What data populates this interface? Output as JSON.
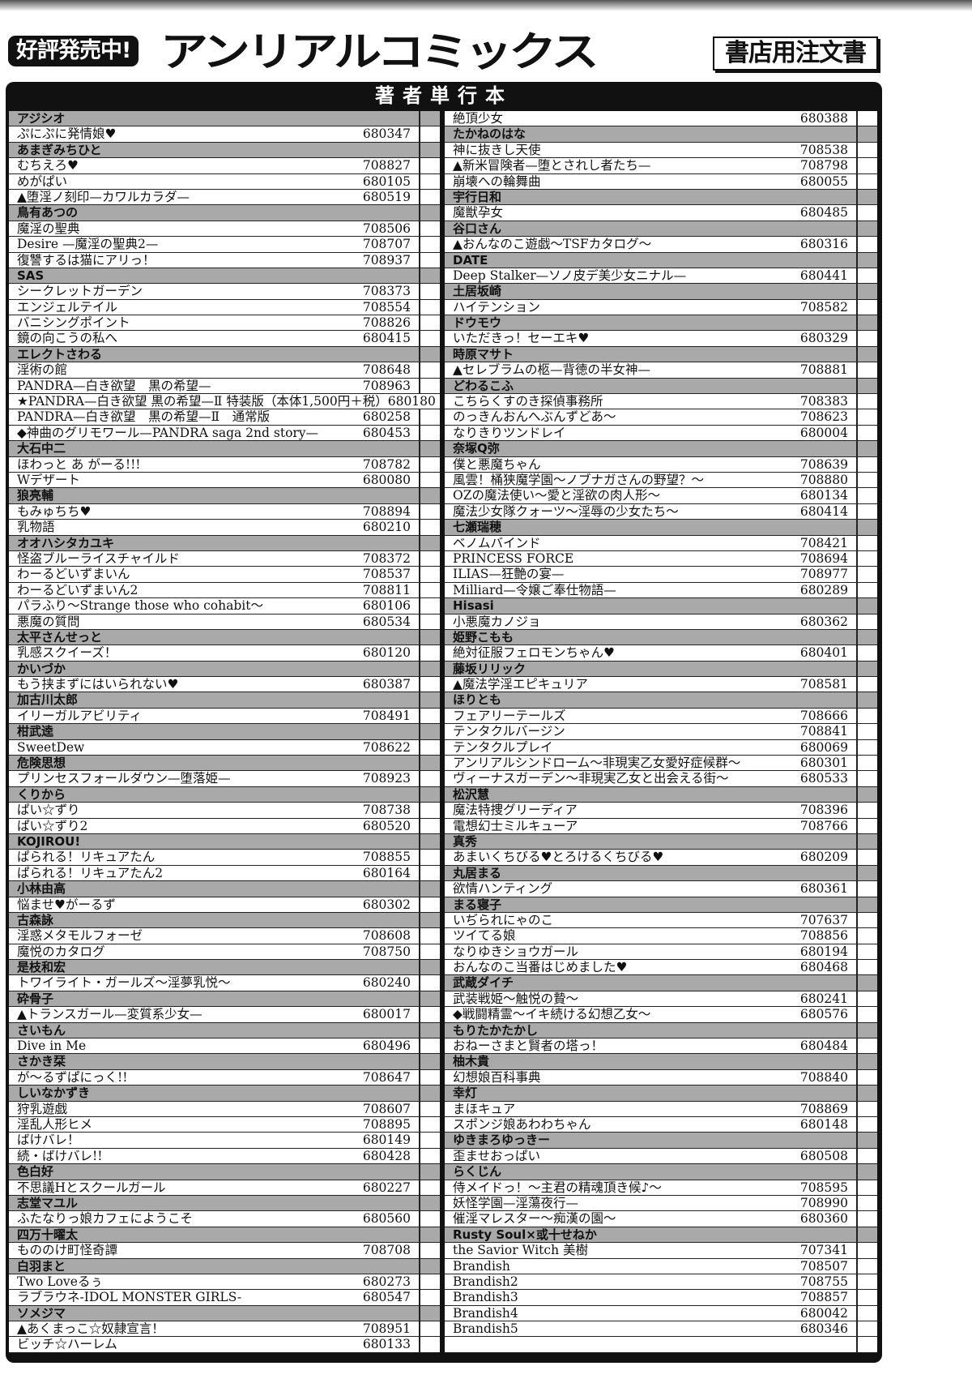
{
  "header": {
    "badge": "好評発売中!",
    "brand": "アンリアルコミックス",
    "order_form": "書店用注文書"
  },
  "panel_title": "著者単行本",
  "left_rows": [
    {
      "author": "アジシオ"
    },
    {
      "title": "ぷにぷに発情娘♥",
      "code": "680347"
    },
    {
      "author": "あまぎみちひと"
    },
    {
      "title": "むちえろ♥",
      "code": "708827"
    },
    {
      "title": "めがぱい",
      "code": "680105"
    },
    {
      "title": "▲堕淫ノ刻印—カワルカラダ—",
      "code": "680519"
    },
    {
      "author": "鳥有あつの"
    },
    {
      "title": "魔淫の聖典",
      "code": "708506"
    },
    {
      "title": "Desire —魔淫の聖典2—",
      "code": "708707"
    },
    {
      "title": "復讐するは猫にアリっ！",
      "code": "708937"
    },
    {
      "author": "SAS"
    },
    {
      "title": "シークレットガーデン",
      "code": "708373"
    },
    {
      "title": "エンジェルテイル",
      "code": "708554"
    },
    {
      "title": "バニシングポイント",
      "code": "708826"
    },
    {
      "title": "鏡の向こうの私へ",
      "code": "680415"
    },
    {
      "author": "エレクトさわる"
    },
    {
      "title": "淫術の館",
      "code": "708648"
    },
    {
      "title": "PANDRA—白き欲望　黒の希望—",
      "code": "708963"
    },
    {
      "title": "★PANDRA—白き欲望 黒の希望—Ⅱ 特装版（本体1,500円＋税）",
      "code": "680180"
    },
    {
      "title": "PANDRA—白き欲望　黒の希望—Ⅱ　通常版",
      "code": "680258"
    },
    {
      "title": "◆神曲のグリモワール—PANDRA saga 2nd story—",
      "code": "680453"
    },
    {
      "author": "大石中二"
    },
    {
      "title": "ほわっと あ がーる!!!",
      "code": "708782"
    },
    {
      "title": "Wデザート",
      "code": "680080"
    },
    {
      "author": "狼亮輔"
    },
    {
      "title": "もみゅちち♥",
      "code": "708894"
    },
    {
      "title": "乳物語",
      "code": "680210"
    },
    {
      "author": "オオハシタカユキ"
    },
    {
      "title": "怪盗ブルーライスチャイルド",
      "code": "708372"
    },
    {
      "title": "わーるどいずまいん",
      "code": "708537"
    },
    {
      "title": "わーるどいずまいん2",
      "code": "708811"
    },
    {
      "title": "パラふり〜Strange those who cohabit〜",
      "code": "680106"
    },
    {
      "title": "悪魔の質問",
      "code": "680534"
    },
    {
      "author": "太平さんせっと"
    },
    {
      "title": "乳感スクイーズ！",
      "code": "680120"
    },
    {
      "author": "かいづか"
    },
    {
      "title": "もう挟まずにはいられない♥",
      "code": "680387"
    },
    {
      "author": "加古川太郎"
    },
    {
      "title": "イリーガルアビリティ",
      "code": "708491"
    },
    {
      "author": "柑武逵"
    },
    {
      "title": "SweetDew",
      "code": "708622"
    },
    {
      "author": "危険思想"
    },
    {
      "title": "プリンセスフォールダウン—堕落姫—",
      "code": "708923"
    },
    {
      "author": "くりから"
    },
    {
      "title": "ぱい☆ずり",
      "code": "708738"
    },
    {
      "title": "ぱい☆ずり2",
      "code": "680520"
    },
    {
      "author": "KOJIROU!"
    },
    {
      "title": "ぱられる！リキュアたん",
      "code": "708855"
    },
    {
      "title": "ぱられる！リキュアたん2",
      "code": "680164"
    },
    {
      "author": "小林由高"
    },
    {
      "title": "悩ませ♥がーるず",
      "code": "680302"
    },
    {
      "author": "古森詠"
    },
    {
      "title": "淫惑メタモルフォーゼ",
      "code": "708608"
    },
    {
      "title": "魔悦のカタログ",
      "code": "708750"
    },
    {
      "author": "是枝和宏"
    },
    {
      "title": "トワイライト・ガールズ〜淫夢乳悦〜",
      "code": "680240"
    },
    {
      "author": "砕骨子"
    },
    {
      "title": "▲トランスガール—変質系少女—",
      "code": "680017"
    },
    {
      "author": "さいもん"
    },
    {
      "title": "Dive in Me",
      "code": "680496"
    },
    {
      "author": "さかき栞"
    },
    {
      "title": "が〜るずぱにっく!!",
      "code": "708647"
    },
    {
      "author": "しいなかずき"
    },
    {
      "title": "狩乳遊戯",
      "code": "708607"
    },
    {
      "title": "淫乱人形ヒメ",
      "code": "708895"
    },
    {
      "title": "ばけバレ！",
      "code": "680149"
    },
    {
      "title": "続・ばけバレ!!",
      "code": "680428"
    },
    {
      "author": "色白好"
    },
    {
      "title": "不思議Hとスクールガール",
      "code": "680227"
    },
    {
      "author": "志堂マユル"
    },
    {
      "title": "ふたなりっ娘カフェにようこそ",
      "code": "680560"
    },
    {
      "author": "四万十曜太"
    },
    {
      "title": "もののけ町怪奇譚",
      "code": "708708"
    },
    {
      "author": "白羽まと"
    },
    {
      "title": "Two Loveるぅ",
      "code": "680273"
    },
    {
      "title": "ラブラウネ-IDOL MONSTER GIRLS-",
      "code": "680547"
    },
    {
      "author": "ソメジマ"
    },
    {
      "title": "▲あくまっこ☆奴隷宣言！",
      "code": "708951"
    },
    {
      "title": "ビッチ☆ハーレム",
      "code": "680133"
    }
  ],
  "right_rows": [
    {
      "title": "絶頂少女",
      "code": "680388"
    },
    {
      "author": "たかねのはな"
    },
    {
      "title": "神に抜きし天使",
      "code": "708538"
    },
    {
      "title": "▲新米冒険者—堕とされし者たち—",
      "code": "708798"
    },
    {
      "title": "崩壊への輪舞曲",
      "code": "680055"
    },
    {
      "author": "宇行日和"
    },
    {
      "title": "魔獣孕女",
      "code": "680485"
    },
    {
      "author": "谷口さん"
    },
    {
      "title": "▲おんなのこ遊戯〜TSFカタログ〜",
      "code": "680316"
    },
    {
      "author": "DATE"
    },
    {
      "title": "Deep Stalker—ソノ皮デ美少女ニナル—",
      "code": "680441"
    },
    {
      "author": "土居坂崎"
    },
    {
      "title": "ハイテンション",
      "code": "708582"
    },
    {
      "author": "ドウモウ"
    },
    {
      "title": "いただきっ！セーエキ♥",
      "code": "680329"
    },
    {
      "author": "時原マサト"
    },
    {
      "title": "▲セレブラムの柩—背徳の半女神—",
      "code": "708881"
    },
    {
      "author": "どわるこふ"
    },
    {
      "title": "こちらくすのき探偵事務所",
      "code": "708383"
    },
    {
      "title": "のっきんおんへぶんずどあ〜",
      "code": "708623"
    },
    {
      "title": "なりきりツンドレイ",
      "code": "680004"
    },
    {
      "author": "奈塚Q弥"
    },
    {
      "title": "僕と悪魔ちゃん",
      "code": "708639"
    },
    {
      "title": "風雲！桶狭魔学園〜ノブナガさんの野望？〜",
      "code": "708880"
    },
    {
      "title": "OZの魔法使い〜愛と淫欲の肉人形〜",
      "code": "680134"
    },
    {
      "title": "魔法少女隊クォーツ〜淫辱の少女たち〜",
      "code": "680414"
    },
    {
      "author": "七瀬瑞穂"
    },
    {
      "title": "ベノムバインド",
      "code": "708421"
    },
    {
      "title": "PRINCESS FORCE",
      "code": "708694"
    },
    {
      "title": "ILIAS—狂艶の宴—",
      "code": "708977"
    },
    {
      "title": "Milliard—令嬢ご奉仕物語—",
      "code": "680289"
    },
    {
      "author": "Hisasi"
    },
    {
      "title": "小悪魔カノジョ",
      "code": "680362"
    },
    {
      "author": "姫野こもも"
    },
    {
      "title": "絶対征服フェロモンちゃん♥",
      "code": "680401"
    },
    {
      "author": "藤坂リリック"
    },
    {
      "title": "▲魔法学淫エピキュリア",
      "code": "708581"
    },
    {
      "author": "ほりとも"
    },
    {
      "title": "フェアリーテールズ",
      "code": "708666"
    },
    {
      "title": "テンタクルバージン",
      "code": "708841"
    },
    {
      "title": "テンタクルプレイ",
      "code": "680069"
    },
    {
      "title": "アンリアルシンドローム〜非現実乙女愛好症候群〜",
      "code": "680301"
    },
    {
      "title": "ヴィーナスガーデン〜非現実乙女と出会える街〜",
      "code": "680533"
    },
    {
      "author": "松沢慧"
    },
    {
      "title": "魔法特捜グリーディア",
      "code": "708396"
    },
    {
      "title": "電想幻士ミルキューア",
      "code": "708766"
    },
    {
      "author": "真秀"
    },
    {
      "title": "あまいくちびる♥とろけるくちびる♥",
      "code": "680209"
    },
    {
      "author": "丸居まる"
    },
    {
      "title": "欲情ハンティング",
      "code": "680361"
    },
    {
      "author": "まる寝子"
    },
    {
      "title": "いぢられにゃのこ",
      "code": "707637"
    },
    {
      "title": "ツイてる娘",
      "code": "708856"
    },
    {
      "title": "なりゆきショウガール",
      "code": "680194"
    },
    {
      "title": "おんなのこ当番はじめました♥",
      "code": "680468"
    },
    {
      "author": "武蔵ダイチ"
    },
    {
      "title": "武装戦姫〜触悦の贄〜",
      "code": "680241"
    },
    {
      "title": "◆戦闘精霊〜イキ続ける幻想乙女〜",
      "code": "680576"
    },
    {
      "author": "もりたかたかし"
    },
    {
      "title": "おねーさまと賢者の塔っ！",
      "code": "680484"
    },
    {
      "author": "柚木貴"
    },
    {
      "title": "幻想娘百科事典",
      "code": "708840"
    },
    {
      "author": "幸灯"
    },
    {
      "title": "まほキュア",
      "code": "708869"
    },
    {
      "title": "スポンジ娘あわわちゃん",
      "code": "680148"
    },
    {
      "author": "ゆきまろゆっきー"
    },
    {
      "title": "歪ませおっぱい",
      "code": "680508"
    },
    {
      "author": "らくじん"
    },
    {
      "title": "侍メイドっ！〜主君の精魂頂き候♪〜",
      "code": "708595"
    },
    {
      "title": "妖怪学園—淫蕩夜行—",
      "code": "708990"
    },
    {
      "title": "催淫マレスター〜痴漢の園〜",
      "code": "680360"
    },
    {
      "author": "Rusty Soul×或十せねか"
    },
    {
      "title": "the Savior Witch 美樹",
      "code": "707341"
    },
    {
      "title": "Brandish",
      "code": "708507"
    },
    {
      "title": "Brandish2",
      "code": "708755"
    },
    {
      "title": "Brandish3",
      "code": "708857"
    },
    {
      "title": "Brandish4",
      "code": "680042"
    },
    {
      "title": "Brandish5",
      "code": "680346"
    },
    {
      "title": "",
      "code": ""
    }
  ]
}
